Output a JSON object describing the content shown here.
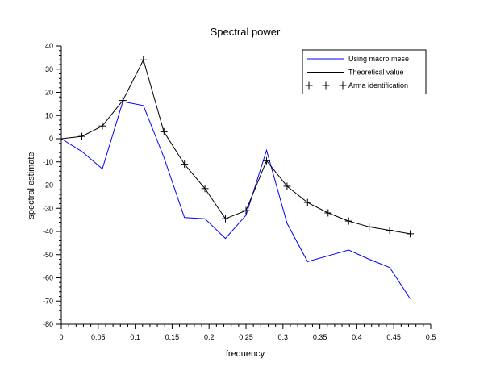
{
  "chart_data": {
    "type": "line",
    "title": "Spectral power",
    "xlabel": "frequency",
    "ylabel": "spectral estimate",
    "xlim": [
      0,
      0.5
    ],
    "ylim": [
      -80,
      40
    ],
    "x_ticks": [
      0,
      0.05,
      0.1,
      0.15,
      0.2,
      0.25,
      0.3,
      0.35,
      0.4,
      0.45,
      0.5
    ],
    "x_tick_labels": [
      "0",
      "0.05",
      "0.1",
      "0.15",
      "0.2",
      "0.25",
      "0.3",
      "0.35",
      "0.4",
      "0.45",
      "0.5"
    ],
    "y_ticks": [
      -80,
      -70,
      -60,
      -50,
      -40,
      -30,
      -20,
      -10,
      0,
      10,
      20,
      30,
      40
    ],
    "y_tick_labels": [
      "-80",
      "-70",
      "-60",
      "-50",
      "-40",
      "-30",
      "-20",
      "-10",
      "0",
      "10",
      "20",
      "30",
      "40"
    ],
    "legend_position": "top-right",
    "series": [
      {
        "name": "Using macro mese",
        "color": "#0000ff",
        "marker": "none",
        "x": [
          0,
          0.0278,
          0.0556,
          0.0833,
          0.1111,
          0.1389,
          0.1667,
          0.1944,
          0.2222,
          0.25,
          0.2778,
          0.3056,
          0.3333,
          0.3611,
          0.3889,
          0.4167,
          0.4444,
          0.4722
        ],
        "values": [
          0,
          -5.5,
          -13,
          16,
          14.3,
          -8,
          -34,
          -34.5,
          -43,
          -33,
          -5,
          -36.5,
          -53,
          -50.5,
          -48,
          -52,
          -55.5,
          -69
        ]
      },
      {
        "name": "Theoretical value",
        "color": "#000000",
        "marker": "none",
        "x": [
          0,
          0.0278,
          0.0556,
          0.0833,
          0.1111,
          0.1389,
          0.1667,
          0.1944,
          0.2222,
          0.25,
          0.2778,
          0.3056,
          0.3333,
          0.3611,
          0.3889,
          0.4167,
          0.4444,
          0.4722
        ],
        "values": [
          0,
          1,
          5.5,
          16.5,
          34,
          3,
          -11,
          -21.5,
          -34.5,
          -31,
          -9.5,
          -20.5,
          -27.5,
          -32,
          -35.5,
          -38,
          -39.5,
          -41
        ]
      },
      {
        "name": "Arma identification",
        "color": "#000000",
        "marker": "plus",
        "x": [
          0.0278,
          0.0556,
          0.0833,
          0.1111,
          0.1389,
          0.1667,
          0.1944,
          0.2222,
          0.25,
          0.2778,
          0.3056,
          0.3333,
          0.3611,
          0.3889,
          0.4167,
          0.4444,
          0.4722
        ],
        "values": [
          1,
          5.5,
          16.5,
          34,
          3,
          -11,
          -21.5,
          -34.5,
          -31,
          -9.5,
          -20.5,
          -27.5,
          -32,
          -35.5,
          -38,
          -39.5,
          -41
        ]
      }
    ]
  }
}
